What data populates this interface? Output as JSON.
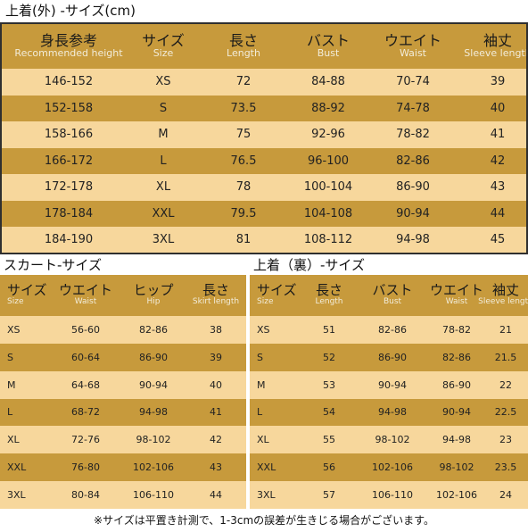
{
  "titles": {
    "top": "上着(外) -サイズ(cm)",
    "skirt": "スカート-サイズ",
    "inner": "上着（裏）-サイズ"
  },
  "top_table": {
    "headers": [
      {
        "jp": "身長参考",
        "en": "Recommended height"
      },
      {
        "jp": "サイズ",
        "en": "Size"
      },
      {
        "jp": "長さ",
        "en": "Length"
      },
      {
        "jp": "バスト",
        "en": "Bust"
      },
      {
        "jp": "ウエイト",
        "en": "Waist"
      },
      {
        "jp": "袖丈",
        "en": "Sleeve length"
      }
    ],
    "rows": [
      [
        "146-152",
        "XS",
        "72",
        "84-88",
        "70-74",
        "39"
      ],
      [
        "152-158",
        "S",
        "73.5",
        "88-92",
        "74-78",
        "40"
      ],
      [
        "158-166",
        "M",
        "75",
        "92-96",
        "78-82",
        "41"
      ],
      [
        "166-172",
        "L",
        "76.5",
        "96-100",
        "82-86",
        "42"
      ],
      [
        "172-178",
        "XL",
        "78",
        "100-104",
        "86-90",
        "43"
      ],
      [
        "178-184",
        "XXL",
        "79.5",
        "104-108",
        "90-94",
        "44"
      ],
      [
        "184-190",
        "3XL",
        "81",
        "108-112",
        "94-98",
        "45"
      ]
    ]
  },
  "skirt_table": {
    "headers": [
      {
        "jp": "サイズ",
        "en": "Size"
      },
      {
        "jp": "ウエイト",
        "en": "Waist"
      },
      {
        "jp": "ヒップ",
        "en": "Hip"
      },
      {
        "jp": "長さ",
        "en": "Skirt length"
      }
    ],
    "rows": [
      [
        "XS",
        "56-60",
        "82-86",
        "38"
      ],
      [
        "S",
        "60-64",
        "86-90",
        "39"
      ],
      [
        "M",
        "64-68",
        "90-94",
        "40"
      ],
      [
        "L",
        "68-72",
        "94-98",
        "41"
      ],
      [
        "XL",
        "72-76",
        "98-102",
        "42"
      ],
      [
        "XXL",
        "76-80",
        "102-106",
        "43"
      ],
      [
        "3XL",
        "80-84",
        "106-110",
        "44"
      ]
    ]
  },
  "inner_table": {
    "headers": [
      {
        "jp": "サイズ",
        "en": "Size"
      },
      {
        "jp": "長さ",
        "en": "Length"
      },
      {
        "jp": "バスト",
        "en": "Bust"
      },
      {
        "jp": "ウエイト",
        "en": "Waist"
      },
      {
        "jp": "袖丈",
        "en": "Sleeve length"
      }
    ],
    "rows": [
      [
        "XS",
        "51",
        "82-86",
        "78-82",
        "21"
      ],
      [
        "S",
        "52",
        "86-90",
        "82-86",
        "21.5"
      ],
      [
        "M",
        "53",
        "90-94",
        "86-90",
        "22"
      ],
      [
        "L",
        "54",
        "94-98",
        "90-94",
        "22.5"
      ],
      [
        "XL",
        "55",
        "98-102",
        "94-98",
        "23"
      ],
      [
        "XXL",
        "56",
        "102-106",
        "98-102",
        "23.5"
      ],
      [
        "3XL",
        "57",
        "106-110",
        "102-106",
        "24"
      ]
    ]
  },
  "footnote": "※サイズは平置き計測で、1-3cmの誤差が生きじる場合がございます。",
  "colors": {
    "dark_row": "#c79a3c",
    "light_row": "#f7d79c",
    "header": "#c79a3c"
  }
}
